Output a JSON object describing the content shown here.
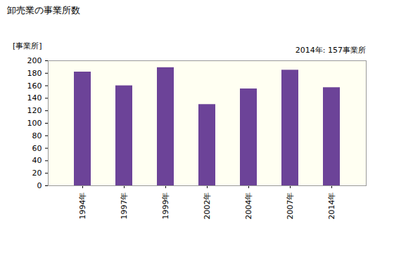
{
  "chart_data": {
    "type": "bar",
    "title": "卸売業の事業所数",
    "ylabel": "[事業所]",
    "annotation": "2014年: 157事業所",
    "categories": [
      "1994年",
      "1997年",
      "1999年",
      "2002年",
      "2004年",
      "2007年",
      "2014年"
    ],
    "values": [
      182,
      160,
      189,
      130,
      155,
      185,
      157
    ],
    "color": "#6c4398",
    "ylim": [
      0,
      200
    ],
    "yticks": [
      0,
      20,
      40,
      60,
      80,
      100,
      120,
      140,
      160,
      180,
      200
    ],
    "grid": false
  }
}
